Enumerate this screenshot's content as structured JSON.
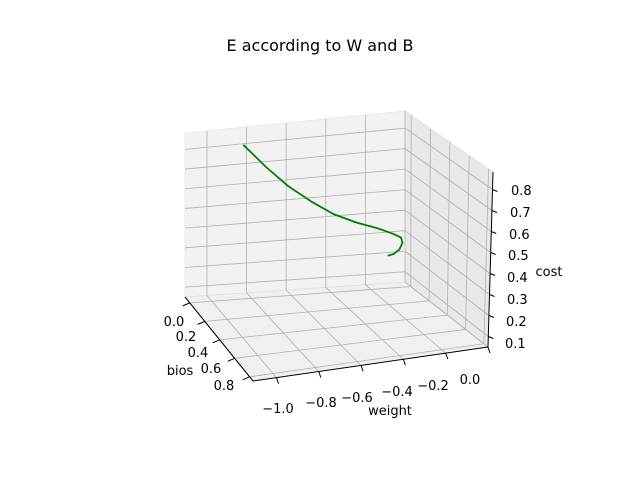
{
  "chart_data": {
    "type": "line",
    "projection": "3d",
    "title": "E according to W and B",
    "xlabel": "weight",
    "ylabel": "bios",
    "zlabel": "cost",
    "x_ticks": [
      "−1.0",
      "−0.8",
      "−0.6",
      "−0.4",
      "−0.2",
      "0.0"
    ],
    "y_ticks": [
      "0.0",
      "0.2",
      "0.4",
      "0.6",
      "0.8"
    ],
    "z_ticks": [
      "0.1",
      "0.2",
      "0.3",
      "0.4",
      "0.5",
      "0.6",
      "0.7",
      "0.8"
    ],
    "grid": true,
    "series": [
      {
        "color": "#008000",
        "points": [
          {
            "weight": -0.8,
            "bios": 0.0,
            "cost": 0.79
          },
          {
            "weight": -0.7,
            "bios": 0.05,
            "cost": 0.7
          },
          {
            "weight": -0.6,
            "bios": 0.1,
            "cost": 0.62
          },
          {
            "weight": -0.5,
            "bios": 0.15,
            "cost": 0.56
          },
          {
            "weight": -0.4,
            "bios": 0.2,
            "cost": 0.51
          },
          {
            "weight": -0.3,
            "bios": 0.25,
            "cost": 0.48
          },
          {
            "weight": -0.2,
            "bios": 0.3,
            "cost": 0.46
          },
          {
            "weight": -0.15,
            "bios": 0.35,
            "cost": 0.45
          },
          {
            "weight": -0.12,
            "bios": 0.38,
            "cost": 0.44
          },
          {
            "weight": -0.13,
            "bios": 0.42,
            "cost": 0.43
          },
          {
            "weight": -0.16,
            "bios": 0.45,
            "cost": 0.41
          },
          {
            "weight": -0.2,
            "bios": 0.47,
            "cost": 0.4
          },
          {
            "weight": -0.23,
            "bios": 0.48,
            "cost": 0.4
          }
        ]
      }
    ]
  }
}
